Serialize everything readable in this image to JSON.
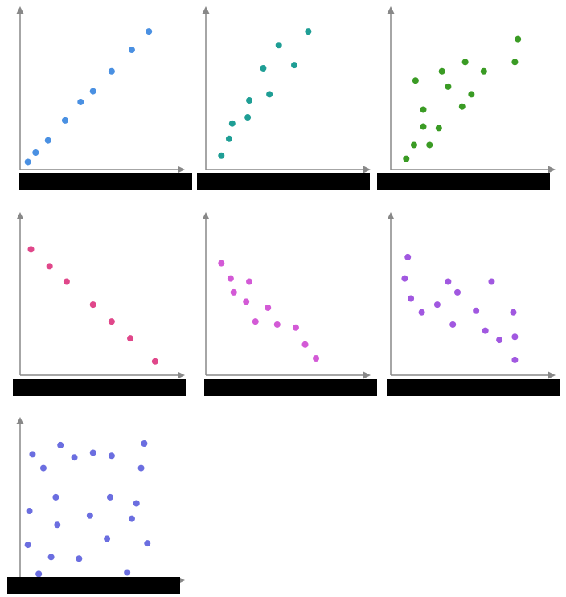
{
  "colors": {
    "axis": "#888888",
    "label_bar": "#000000"
  },
  "chart_data": [
    {
      "type": "scatter",
      "color": "#4a90e2",
      "x_ticks": [],
      "points": [
        {
          "x": 0.05,
          "y": 0.05
        },
        {
          "x": 0.1,
          "y": 0.11
        },
        {
          "x": 0.18,
          "y": 0.19
        },
        {
          "x": 0.29,
          "y": 0.32
        },
        {
          "x": 0.39,
          "y": 0.44
        },
        {
          "x": 0.47,
          "y": 0.51
        },
        {
          "x": 0.59,
          "y": 0.64
        },
        {
          "x": 0.72,
          "y": 0.78
        },
        {
          "x": 0.83,
          "y": 0.9
        }
      ]
    },
    {
      "type": "scatter",
      "color": "#1f9e95",
      "x_ticks": [],
      "points": [
        {
          "x": 0.1,
          "y": 0.09
        },
        {
          "x": 0.15,
          "y": 0.2
        },
        {
          "x": 0.17,
          "y": 0.3
        },
        {
          "x": 0.27,
          "y": 0.34
        },
        {
          "x": 0.28,
          "y": 0.45
        },
        {
          "x": 0.41,
          "y": 0.49
        },
        {
          "x": 0.37,
          "y": 0.66
        },
        {
          "x": 0.57,
          "y": 0.68
        },
        {
          "x": 0.47,
          "y": 0.81
        },
        {
          "x": 0.66,
          "y": 0.9
        }
      ]
    },
    {
      "type": "scatter",
      "color": "#3a9b24",
      "x_ticks": [],
      "points": [
        {
          "x": 0.1,
          "y": 0.07
        },
        {
          "x": 0.15,
          "y": 0.16
        },
        {
          "x": 0.25,
          "y": 0.16
        },
        {
          "x": 0.21,
          "y": 0.28
        },
        {
          "x": 0.31,
          "y": 0.27
        },
        {
          "x": 0.21,
          "y": 0.39
        },
        {
          "x": 0.46,
          "y": 0.41
        },
        {
          "x": 0.52,
          "y": 0.49
        },
        {
          "x": 0.37,
          "y": 0.54
        },
        {
          "x": 0.16,
          "y": 0.58
        },
        {
          "x": 0.33,
          "y": 0.64
        },
        {
          "x": 0.6,
          "y": 0.64
        },
        {
          "x": 0.48,
          "y": 0.7
        },
        {
          "x": 0.8,
          "y": 0.7
        },
        {
          "x": 0.82,
          "y": 0.85
        }
      ]
    },
    {
      "type": "scatter",
      "color": "#e0478a",
      "x_ticks": [],
      "points": [
        {
          "x": 0.07,
          "y": 0.82
        },
        {
          "x": 0.19,
          "y": 0.71
        },
        {
          "x": 0.3,
          "y": 0.61
        },
        {
          "x": 0.47,
          "y": 0.46
        },
        {
          "x": 0.59,
          "y": 0.35
        },
        {
          "x": 0.71,
          "y": 0.24
        },
        {
          "x": 0.87,
          "y": 0.09
        }
      ]
    },
    {
      "type": "scatter",
      "color": "#d35ad6",
      "x_ticks": [],
      "points": [
        {
          "x": 0.1,
          "y": 0.73
        },
        {
          "x": 0.16,
          "y": 0.63
        },
        {
          "x": 0.18,
          "y": 0.54
        },
        {
          "x": 0.28,
          "y": 0.61
        },
        {
          "x": 0.26,
          "y": 0.48
        },
        {
          "x": 0.4,
          "y": 0.44
        },
        {
          "x": 0.32,
          "y": 0.35
        },
        {
          "x": 0.46,
          "y": 0.33
        },
        {
          "x": 0.58,
          "y": 0.31
        },
        {
          "x": 0.64,
          "y": 0.2
        },
        {
          "x": 0.71,
          "y": 0.11
        }
      ]
    },
    {
      "type": "scatter",
      "color": "#a158e0",
      "x_ticks": [],
      "points": [
        {
          "x": 0.11,
          "y": 0.77
        },
        {
          "x": 0.09,
          "y": 0.63
        },
        {
          "x": 0.13,
          "y": 0.5
        },
        {
          "x": 0.2,
          "y": 0.41
        },
        {
          "x": 0.3,
          "y": 0.46
        },
        {
          "x": 0.37,
          "y": 0.61
        },
        {
          "x": 0.43,
          "y": 0.54
        },
        {
          "x": 0.4,
          "y": 0.33
        },
        {
          "x": 0.55,
          "y": 0.42
        },
        {
          "x": 0.61,
          "y": 0.29
        },
        {
          "x": 0.65,
          "y": 0.61
        },
        {
          "x": 0.7,
          "y": 0.23
        },
        {
          "x": 0.79,
          "y": 0.41
        },
        {
          "x": 0.8,
          "y": 0.25
        },
        {
          "x": 0.8,
          "y": 0.1
        }
      ]
    },
    {
      "type": "scatter",
      "color": "#6b6ee0",
      "x_ticks": [],
      "points": [
        {
          "x": 0.12,
          "y": 0.04
        },
        {
          "x": 0.05,
          "y": 0.23
        },
        {
          "x": 0.2,
          "y": 0.15
        },
        {
          "x": 0.38,
          "y": 0.14
        },
        {
          "x": 0.69,
          "y": 0.05
        },
        {
          "x": 0.56,
          "y": 0.27
        },
        {
          "x": 0.82,
          "y": 0.24
        },
        {
          "x": 0.24,
          "y": 0.36
        },
        {
          "x": 0.45,
          "y": 0.42
        },
        {
          "x": 0.72,
          "y": 0.4
        },
        {
          "x": 0.06,
          "y": 0.45
        },
        {
          "x": 0.23,
          "y": 0.54
        },
        {
          "x": 0.58,
          "y": 0.54
        },
        {
          "x": 0.75,
          "y": 0.5
        },
        {
          "x": 0.15,
          "y": 0.73
        },
        {
          "x": 0.35,
          "y": 0.8
        },
        {
          "x": 0.78,
          "y": 0.73
        },
        {
          "x": 0.26,
          "y": 0.88
        },
        {
          "x": 0.47,
          "y": 0.83
        },
        {
          "x": 0.59,
          "y": 0.81
        },
        {
          "x": 0.08,
          "y": 0.82
        },
        {
          "x": 0.8,
          "y": 0.89
        }
      ]
    }
  ]
}
